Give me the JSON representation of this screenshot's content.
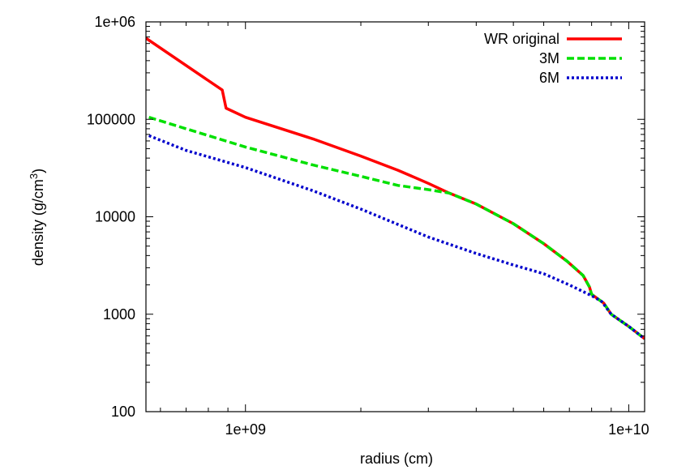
{
  "chart_data": {
    "type": "line",
    "xlabel": "radius (cm)",
    "ylabel_main": "density (g/cm",
    "ylabel_sup": "3",
    "ylabel_close": ")",
    "x_scale": "log",
    "y_scale": "log",
    "xlim": [
      550000000,
      11000000000
    ],
    "ylim": [
      100,
      1000000
    ],
    "x_ticks": [
      {
        "value": 1000000000,
        "label": "1e+09"
      },
      {
        "value": 10000000000,
        "label": "1e+10"
      }
    ],
    "y_ticks": [
      {
        "value": 100,
        "label": "100"
      },
      {
        "value": 1000,
        "label": "1000"
      },
      {
        "value": 10000,
        "label": "10000"
      },
      {
        "value": 100000,
        "label": "100000"
      },
      {
        "value": 1000000,
        "label": "1e+06"
      }
    ],
    "grid": false,
    "legend_position": "top-right",
    "series": [
      {
        "name": "WR original",
        "color": "#ff0000",
        "dash": "solid",
        "x": [
          550000000,
          870000000,
          890000000,
          1000000000,
          1500000000,
          2000000000,
          2500000000,
          3000000000,
          3400000000,
          4000000000,
          5000000000,
          6000000000,
          6900000000,
          7600000000,
          7900000000,
          8000000000,
          8600000000,
          9000000000,
          10000000000,
          11000000000
        ],
        "y": [
          680000,
          200000,
          130000,
          105000,
          63000,
          42000,
          30000,
          22000,
          17500,
          13500,
          8500,
          5300,
          3500,
          2500,
          1900,
          1600,
          1300,
          1000,
          750,
          560
        ]
      },
      {
        "name": "3M",
        "color": "#00e000",
        "dash": "dashed",
        "x": [
          560000000,
          700000000,
          1000000000,
          1500000000,
          2000000000,
          2500000000,
          3000000000,
          3400000000,
          4000000000,
          5000000000,
          6000000000,
          6900000000,
          7600000000,
          7900000000,
          8000000000,
          8600000000,
          9000000000,
          10000000000,
          11000000000
        ],
        "y": [
          105000,
          80000,
          52000,
          34000,
          26000,
          21000,
          19000,
          17500,
          13500,
          8500,
          5300,
          3500,
          2500,
          1900,
          1600,
          1300,
          1000,
          750,
          560
        ]
      },
      {
        "name": "6M",
        "color": "#0000cc",
        "dash": "dotted",
        "x": [
          560000000,
          700000000,
          1000000000,
          1500000000,
          2000000000,
          3000000000,
          4000000000,
          5000000000,
          6000000000,
          7000000000,
          7500000000,
          8000000000,
          8500000000,
          9000000000,
          10000000000,
          11000000000
        ],
        "y": [
          68000,
          48000,
          32000,
          18500,
          12000,
          6200,
          4200,
          3200,
          2600,
          2000,
          1750,
          1550,
          1350,
          1000,
          750,
          560
        ]
      }
    ]
  }
}
